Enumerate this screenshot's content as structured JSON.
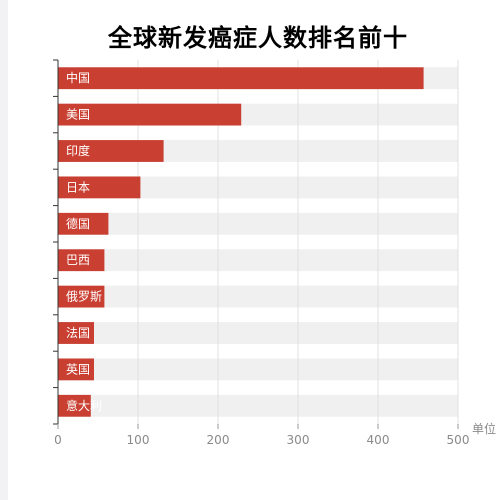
{
  "chart_data": {
    "type": "bar",
    "orientation": "horizontal",
    "title": "全球新发癌症人数排名前十",
    "categories": [
      "中国",
      "美国",
      "印度",
      "日本",
      "德国",
      "巴西",
      "俄罗斯",
      "法国",
      "英国",
      "意大利"
    ],
    "values": [
      457,
      229,
      132,
      103,
      63,
      58,
      58,
      45,
      45,
      41
    ],
    "xlim": [
      0,
      500
    ],
    "xticks": [
      0,
      100,
      200,
      300,
      400,
      500
    ],
    "xlabel": "单位",
    "ylabel": "",
    "grid": true,
    "legend": "none",
    "colors": {
      "bar": "#c94033",
      "track": "#f0f0f0",
      "grid": "#e0e0e0",
      "axis": "#333333"
    }
  }
}
